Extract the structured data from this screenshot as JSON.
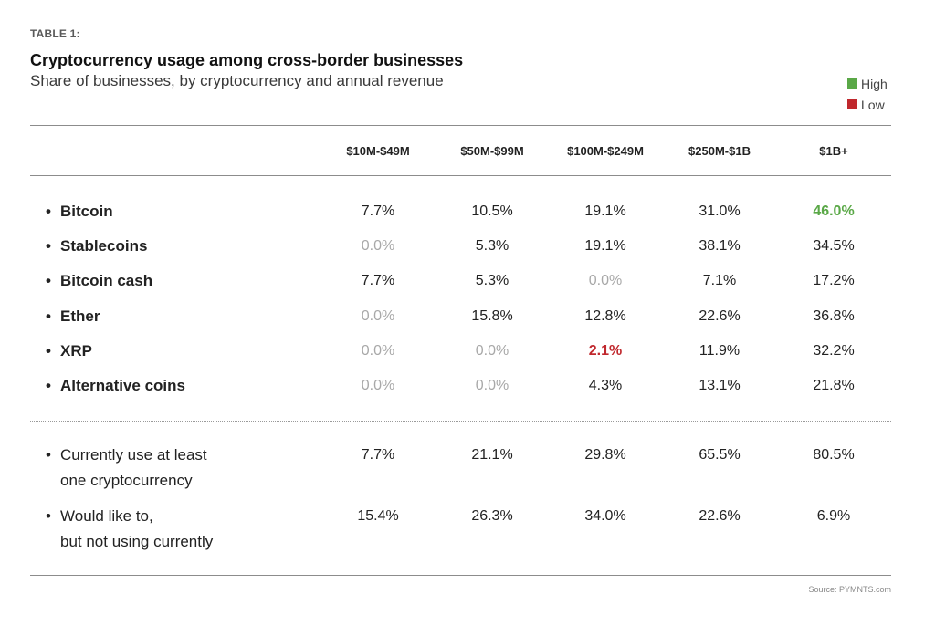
{
  "table_label": "TABLE 1:",
  "title": "Cryptocurrency usage among cross-border businesses",
  "subtitle": "Share of businesses, by cryptocurrency and annual revenue",
  "legend": [
    {
      "label": "High",
      "color": "#5aa847"
    },
    {
      "label": "Low",
      "color": "#c0282d"
    }
  ],
  "source": "Source: PYMNTS.com",
  "chart_data": {
    "type": "table",
    "columns": [
      "$10M-$49M",
      "$50M-$99M",
      "$100M-$249M",
      "$250M-$1B",
      "$1B+"
    ],
    "coin_rows": [
      {
        "label": [
          "Bitcoin"
        ],
        "values": [
          "7.7%",
          "10.5%",
          "19.1%",
          "31.0%",
          "46.0%"
        ],
        "highlight": [
          null,
          null,
          null,
          null,
          "high"
        ]
      },
      {
        "label": [
          "Stablecoins"
        ],
        "values": [
          "0.0%",
          "5.3%",
          "19.1%",
          "38.1%",
          "34.5%"
        ],
        "highlight": [
          null,
          null,
          null,
          null,
          null
        ]
      },
      {
        "label": [
          "Bitcoin cash"
        ],
        "values": [
          "7.7%",
          "5.3%",
          "0.0%",
          "7.1%",
          "17.2%"
        ],
        "highlight": [
          null,
          null,
          null,
          null,
          null
        ]
      },
      {
        "label": [
          "Ether"
        ],
        "values": [
          "0.0%",
          "15.8%",
          "12.8%",
          "22.6%",
          "36.8%"
        ],
        "highlight": [
          null,
          null,
          null,
          null,
          null
        ]
      },
      {
        "label": [
          "XRP"
        ],
        "values": [
          "0.0%",
          "0.0%",
          "2.1%",
          "11.9%",
          "32.2%"
        ],
        "highlight": [
          null,
          null,
          "low",
          null,
          null
        ]
      },
      {
        "label": [
          "Alternative coins"
        ],
        "values": [
          "0.0%",
          "0.0%",
          "4.3%",
          "13.1%",
          "21.8%"
        ],
        "highlight": [
          null,
          null,
          null,
          null,
          null
        ]
      }
    ],
    "summary_rows": [
      {
        "label": [
          "Currently use at least",
          "one cryptocurrency"
        ],
        "values": [
          "7.7%",
          "21.1%",
          "29.8%",
          "65.5%",
          "80.5%"
        ],
        "highlight": [
          null,
          null,
          null,
          null,
          null
        ]
      },
      {
        "label": [
          "Would like to,",
          "but not using currently"
        ],
        "values": [
          "15.4%",
          "26.3%",
          "34.0%",
          "22.6%",
          "6.9%"
        ],
        "highlight": [
          null,
          null,
          null,
          null,
          null
        ]
      }
    ]
  }
}
